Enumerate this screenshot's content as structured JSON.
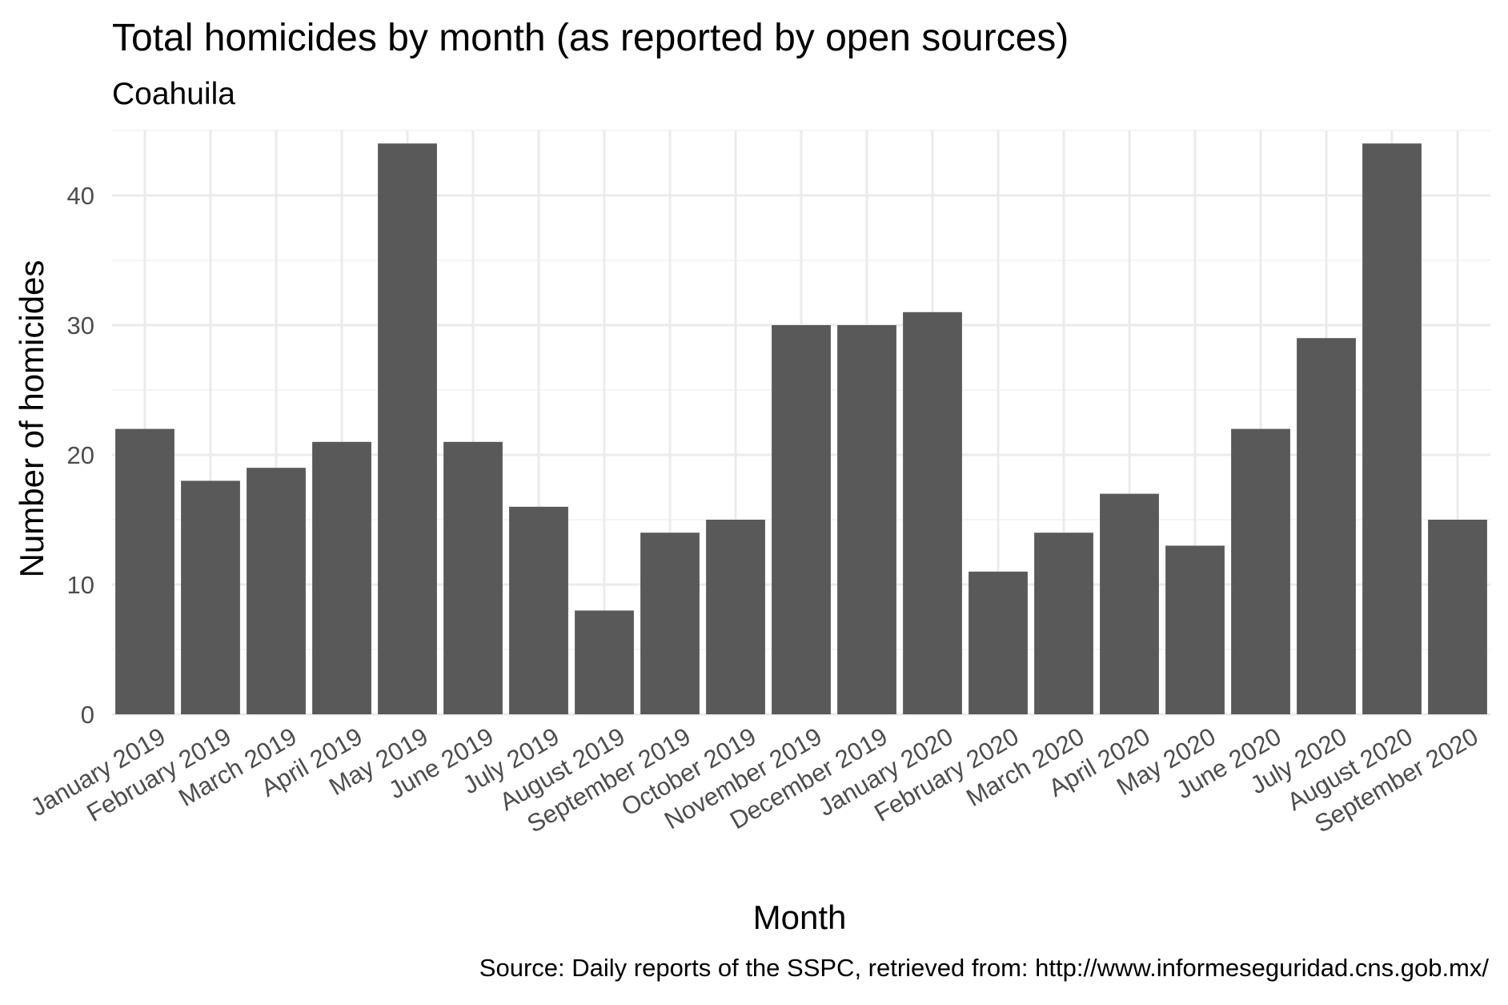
{
  "chart_data": {
    "type": "bar",
    "title": "Total homicides by month (as reported by open sources)",
    "subtitle": "Coahuila",
    "xlabel": "Month",
    "ylabel": "Number of homicides",
    "caption": "Source: Daily reports of the SSPC, retrieved from: http://www.informeseguridad.cns.gob.mx/",
    "categories": [
      "January 2019",
      "February 2019",
      "March 2019",
      "April 2019",
      "May 2019",
      "June 2019",
      "July 2019",
      "August 2019",
      "September 2019",
      "October 2019",
      "November 2019",
      "December 2019",
      "January 2020",
      "February 2020",
      "March 2020",
      "April 2020",
      "May 2020",
      "June 2020",
      "July 2020",
      "August 2020",
      "September 2020"
    ],
    "values": [
      22,
      18,
      19,
      21,
      44,
      21,
      16,
      8,
      14,
      15,
      30,
      30,
      31,
      11,
      14,
      17,
      13,
      22,
      29,
      44,
      15
    ],
    "ylim": [
      0,
      45
    ],
    "yticks": [
      0,
      10,
      20,
      30,
      40
    ],
    "grid": true,
    "legend": "none",
    "colors": {
      "bar": "#595959",
      "grid_major": "#ebebeb",
      "grid_minor": "#f2f2f2",
      "tick_text": "#4d4d4d"
    }
  }
}
